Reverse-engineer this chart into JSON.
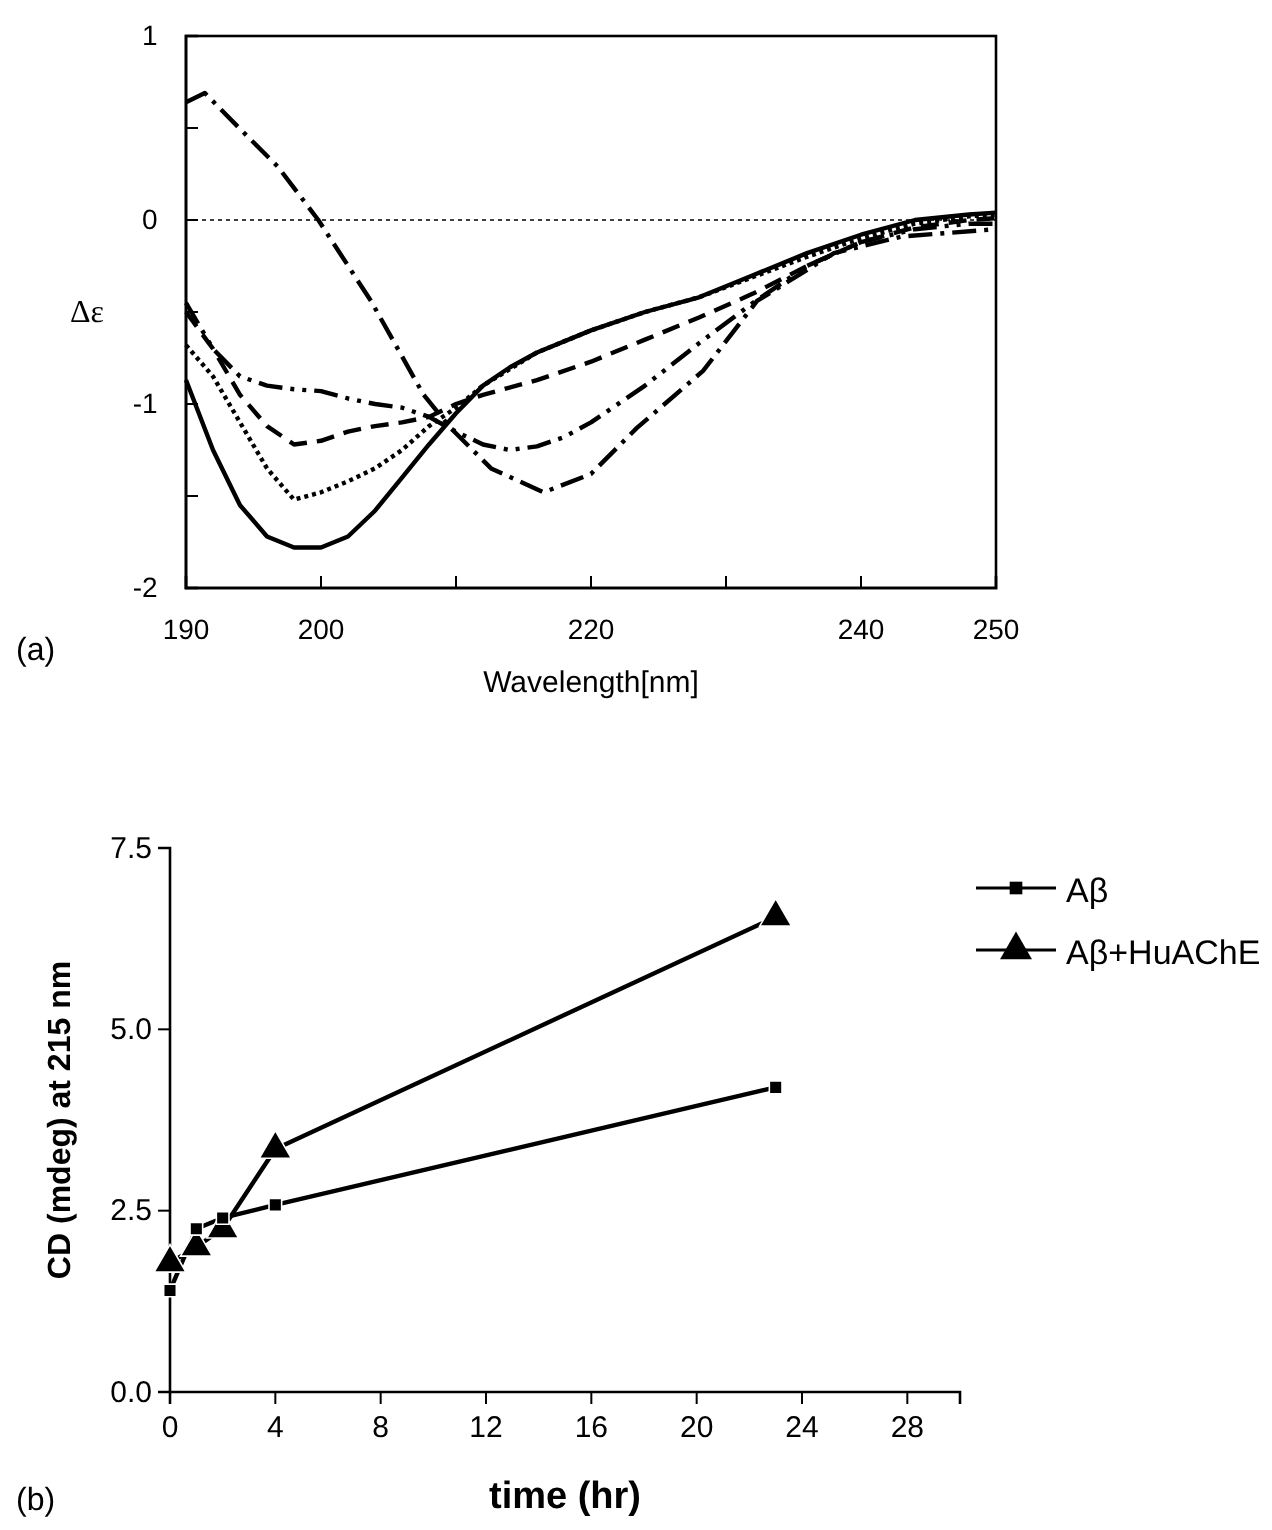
{
  "chart_data": [
    {
      "type": "line",
      "xlabel": "Wavelength[nm]",
      "ylabel": "Δε",
      "xlim": [
        190,
        250
      ],
      "ylim": [
        -2,
        1
      ],
      "xticks": [
        190,
        200,
        {
          "value": 210,
          "label": null
        },
        220,
        {
          "value": 230,
          "label": null
        },
        240,
        250
      ],
      "yticks": [
        -2,
        {
          "value": -1.5,
          "label": null
        },
        -1,
        {
          "value": -0.5,
          "label": null
        },
        0,
        {
          "value": 0.5,
          "label": null
        },
        1
      ],
      "ref_lines": [
        {
          "axis": "y",
          "value": 0,
          "line_style": "dotted",
          "color": "#000000"
        }
      ],
      "annotations": [
        "(a)"
      ],
      "marker": "none",
      "legend": false,
      "series": [
        {
          "color": "#000000",
          "line_style": "solid",
          "x": [
            190,
            192,
            194,
            196,
            198,
            200,
            202,
            204,
            206,
            208,
            210,
            212,
            214,
            216,
            220,
            224,
            228,
            232,
            236,
            240,
            244,
            248,
            250
          ],
          "values": [
            -0.87,
            -1.25,
            -1.55,
            -1.72,
            -1.78,
            -1.78,
            -1.72,
            -1.58,
            -1.4,
            -1.22,
            -1.05,
            -0.9,
            -0.8,
            -0.72,
            -0.6,
            -0.5,
            -0.42,
            -0.3,
            -0.18,
            -0.08,
            0.0,
            0.03,
            0.04
          ]
        },
        {
          "color": "#000000",
          "line_style": "dotted",
          "x": [
            190,
            192,
            194,
            196,
            198,
            200,
            202,
            204,
            206,
            208,
            210,
            212,
            216,
            220,
            224,
            228,
            232,
            236,
            240,
            244,
            248,
            250
          ],
          "values": [
            -0.68,
            -0.85,
            -1.1,
            -1.35,
            -1.52,
            -1.48,
            -1.42,
            -1.35,
            -1.25,
            -1.12,
            -1.02,
            -0.9,
            -0.72,
            -0.6,
            -0.5,
            -0.42,
            -0.31,
            -0.2,
            -0.1,
            -0.02,
            0.02,
            0.03
          ]
        },
        {
          "color": "#000000",
          "line_style": "dashed",
          "x": [
            190,
            192,
            194,
            196,
            198,
            200,
            202,
            204,
            206,
            208,
            210,
            212,
            216,
            220,
            224,
            228,
            232,
            236,
            240,
            244,
            248,
            250
          ],
          "values": [
            -0.5,
            -0.7,
            -0.95,
            -1.12,
            -1.22,
            -1.2,
            -1.15,
            -1.12,
            -1.1,
            -1.07,
            -1.0,
            -0.95,
            -0.87,
            -0.77,
            -0.65,
            -0.53,
            -0.4,
            -0.25,
            -0.12,
            -0.04,
            0.0,
            0.01
          ]
        },
        {
          "color": "#000000",
          "line_style": "dashdotdot",
          "x": [
            190,
            192,
            194,
            196,
            198,
            200,
            202,
            204,
            206,
            208,
            210,
            212,
            214,
            216,
            218,
            220,
            224,
            228,
            232,
            236,
            240,
            244,
            248,
            250
          ],
          "values": [
            -0.45,
            -0.7,
            -0.85,
            -0.9,
            -0.92,
            -0.93,
            -0.97,
            -1.0,
            -1.02,
            -1.07,
            -1.15,
            -1.22,
            -1.25,
            -1.23,
            -1.18,
            -1.1,
            -0.9,
            -0.67,
            -0.45,
            -0.25,
            -0.12,
            -0.05,
            -0.02,
            -0.02
          ]
        },
        {
          "color": "#000000",
          "line_style": "dashdot",
          "x": [
            190,
            191.4,
            193.8,
            196.8,
            199.8,
            203.7,
            207.6,
            209.6,
            212.6,
            216.5,
            220,
            223.4,
            228.3,
            232.3,
            238,
            243,
            250
          ],
          "values": [
            0.64,
            0.69,
            0.51,
            0.29,
            0,
            -0.44,
            -0.95,
            -1.13,
            -1.35,
            -1.48,
            -1.38,
            -1.13,
            -0.82,
            -0.44,
            -0.18,
            -0.09,
            -0.05
          ]
        }
      ]
    },
    {
      "type": "line",
      "xlabel": "time (hr)",
      "ylabel": "CD (mdeg) at 215 nm",
      "xlim": [
        0,
        30
      ],
      "ylim": [
        0,
        7.5
      ],
      "xticks": [
        0,
        4,
        8,
        12,
        16,
        20,
        24,
        28
      ],
      "yticks": [
        {
          "value": 0,
          "label": "0.0"
        },
        2.5,
        {
          "value": 5,
          "label": "5.0"
        },
        7.5
      ],
      "annotations": [
        "(b)"
      ],
      "legend": "top right",
      "series": [
        {
          "name": "Aβ",
          "color": "#000000",
          "marker": "square",
          "line_style": "solid",
          "x": [
            0,
            1,
            2,
            4,
            23
          ],
          "values": [
            1.4,
            2.25,
            2.4,
            2.58,
            4.2
          ]
        },
        {
          "name": "Aβ+HuAChE",
          "color": "#000000",
          "marker": "triangle",
          "line_style": "solid",
          "x": [
            0,
            1,
            2,
            4,
            23
          ],
          "values": [
            1.78,
            2.0,
            2.25,
            3.35,
            6.55
          ]
        }
      ]
    }
  ]
}
